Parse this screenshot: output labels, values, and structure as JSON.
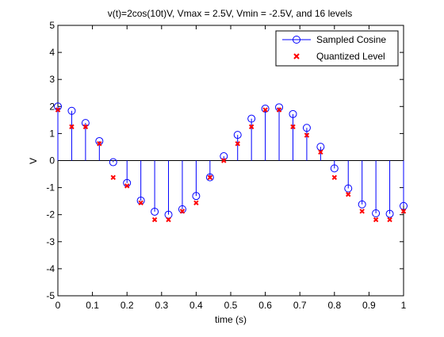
{
  "chart_data": {
    "type": "scatter",
    "title": "v(t)=2cos(10t)V, Vmax = 2.5V, Vmin = -2.5V, and 16 levels",
    "xlabel": "time (s)",
    "ylabel": "V",
    "xlim": [
      0,
      1
    ],
    "ylim": [
      -5,
      5
    ],
    "x_ticks": [
      "0",
      "0.1",
      "0.2",
      "0.3",
      "0.4",
      "0.5",
      "0.6",
      "0.7",
      "0.8",
      "0.9",
      "1"
    ],
    "y_ticks": [
      "5",
      "4",
      "3",
      "2",
      "1",
      "0",
      "-1",
      "-2",
      "-3",
      "-4",
      "-5"
    ],
    "grid": false,
    "legend_placement": "top-right",
    "x": [
      0,
      0.04,
      0.08,
      0.12,
      0.16,
      0.2,
      0.24,
      0.28,
      0.32,
      0.36,
      0.4,
      0.44,
      0.48,
      0.52,
      0.56,
      0.6,
      0.64,
      0.68,
      0.72,
      0.76,
      0.8,
      0.84,
      0.88,
      0.92,
      0.96,
      1.0
    ],
    "series": [
      {
        "name": "Sampled Cosine",
        "style": "stem",
        "color": "#0000ff",
        "values": [
          2.0,
          1.84,
          1.39,
          0.72,
          -0.06,
          -0.83,
          -1.48,
          -1.89,
          -2.0,
          -1.8,
          -1.31,
          -0.62,
          0.16,
          0.95,
          1.55,
          1.92,
          1.97,
          1.72,
          1.21,
          0.51,
          -0.29,
          -1.03,
          -1.62,
          -1.95,
          -1.97,
          -1.68
        ]
      },
      {
        "name": "Quantized Level",
        "style": "marker-x",
        "color": "#ff0000",
        "values": [
          1.875,
          1.25,
          1.25,
          0.625,
          -0.625,
          -0.9375,
          -1.5625,
          -2.1875,
          -2.1875,
          -1.875,
          -1.5625,
          -0.625,
          0.0,
          0.625,
          1.25,
          1.875,
          1.875,
          1.25,
          0.9375,
          0.3125,
          -0.625,
          -1.25,
          -1.875,
          -2.1875,
          -2.1875,
          -1.875
        ]
      }
    ]
  }
}
